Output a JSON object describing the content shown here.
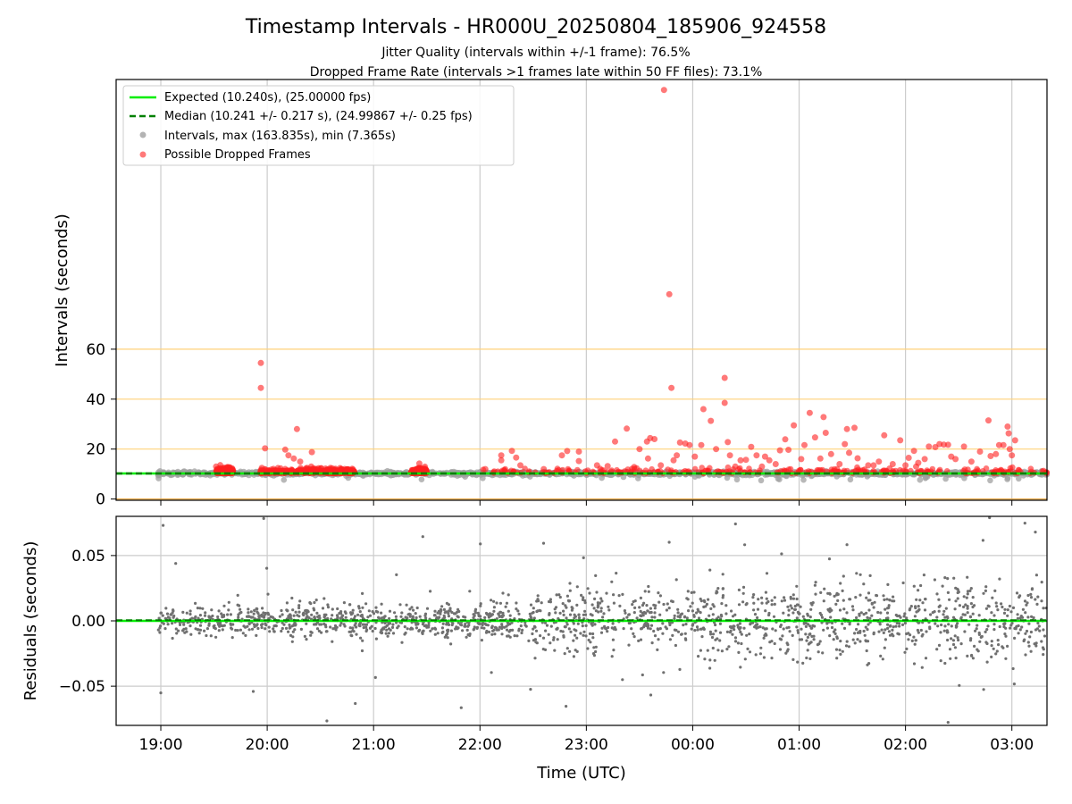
{
  "chart_data": {
    "title": "Timestamp Intervals - HR000U_20250804_185906_924558",
    "subtitles": [
      "Jitter Quality (intervals within +/-1 frame): 76.5%",
      "Dropped Frame Rate (intervals >1 frames late within 50 FF files): 73.1%"
    ],
    "xlabel": "Time (UTC)",
    "x_tick_labels": [
      "19:00",
      "20:00",
      "21:00",
      "22:00",
      "23:00",
      "00:00",
      "01:00",
      "02:00",
      "03:00"
    ],
    "x_range_hours": [
      18.58,
      27.33
    ],
    "colors": {
      "expected": "#00ee00",
      "median": "#008000",
      "intervals": "#a0a0a0",
      "dropped": "#ff2020",
      "residuals": "#707070",
      "threshold_lines": "#ffd27a",
      "grid": "#cccccc"
    },
    "panels": [
      {
        "type": "scatter",
        "ylabel": "Intervals (seconds)",
        "ylim": [
          -0.5,
          168
        ],
        "yticks": [
          0,
          20,
          40,
          60
        ],
        "y_tick_labels": [
          "0",
          "20",
          "40",
          "60"
        ],
        "horizontal_lines": [
          20,
          40,
          60
        ],
        "expected_interval": 10.24,
        "median_interval": 10.241,
        "legend": {
          "position": "top-left",
          "entries": [
            "Expected (10.240s), (25.00000 fps)",
            "Median (10.241 +/- 0.217 s), (24.99867 +/- 0.25 fps)",
            "Intervals, max (163.835s), min (7.365s)",
            "Possible Dropped Frames"
          ]
        },
        "series": [
          {
            "name": "Possible Dropped Frames",
            "points": [
              [
                19.94,
                54.5
              ],
              [
                19.94,
                44.5
              ],
              [
                19.98,
                20.3
              ],
              [
                20.17,
                19.8
              ],
              [
                20.2,
                17.5
              ],
              [
                20.25,
                16.2
              ],
              [
                20.28,
                28.0
              ],
              [
                20.31,
                15.0
              ],
              [
                20.42,
                18.8
              ],
              [
                19.52,
                13.0
              ],
              [
                19.6,
                11.5
              ],
              [
                19.95,
                12.5
              ],
              [
                21.43,
                14.2
              ],
              [
                22.05,
                12.0
              ],
              [
                22.2,
                17.5
              ],
              [
                22.2,
                15.5
              ],
              [
                22.3,
                19.3
              ],
              [
                22.34,
                16.6
              ],
              [
                22.38,
                13.5
              ],
              [
                22.77,
                17.5
              ],
              [
                22.82,
                19.2
              ],
              [
                22.93,
                19.0
              ],
              [
                22.93,
                15.2
              ],
              [
                23.1,
                13.5
              ],
              [
                23.27,
                23.0
              ],
              [
                23.38,
                28.2
              ],
              [
                23.5,
                20.0
              ],
              [
                23.57,
                23.0
              ],
              [
                23.58,
                16.2
              ],
              [
                23.6,
                24.4
              ],
              [
                23.64,
                24.0
              ],
              [
                23.7,
                13.5
              ],
              [
                23.73,
                163.8
              ],
              [
                23.78,
                82.0
              ],
              [
                23.8,
                44.5
              ],
              [
                23.82,
                15.5
              ],
              [
                23.85,
                17.5
              ],
              [
                23.88,
                22.6
              ],
              [
                23.93,
                22.2
              ],
              [
                23.97,
                21.6
              ],
              [
                24.02,
                17.0
              ],
              [
                24.08,
                21.6
              ],
              [
                24.1,
                36.0
              ],
              [
                24.17,
                31.3
              ],
              [
                24.22,
                20.0
              ],
              [
                24.3,
                48.5
              ],
              [
                24.3,
                38.5
              ],
              [
                24.33,
                22.8
              ],
              [
                24.35,
                17.5
              ],
              [
                24.45,
                15.5
              ],
              [
                24.5,
                15.7
              ],
              [
                24.55,
                20.9
              ],
              [
                24.6,
                17.5
              ],
              [
                24.65,
                13.0
              ],
              [
                24.68,
                17.0
              ],
              [
                24.72,
                15.5
              ],
              [
                24.78,
                14.0
              ],
              [
                24.82,
                19.5
              ],
              [
                24.87,
                23.9
              ],
              [
                24.9,
                19.7
              ],
              [
                24.95,
                29.5
              ],
              [
                25.02,
                16.0
              ],
              [
                25.05,
                21.6
              ],
              [
                25.1,
                34.5
              ],
              [
                25.15,
                24.7
              ],
              [
                25.2,
                16.2
              ],
              [
                25.23,
                32.8
              ],
              [
                25.25,
                26.5
              ],
              [
                25.3,
                18.0
              ],
              [
                25.38,
                14.0
              ],
              [
                25.43,
                22.0
              ],
              [
                25.45,
                28.0
              ],
              [
                25.47,
                18.5
              ],
              [
                25.52,
                28.5
              ],
              [
                25.55,
                16.3
              ],
              [
                25.6,
                11.5
              ],
              [
                25.7,
                13.5
              ],
              [
                25.75,
                15.0
              ],
              [
                25.8,
                25.5
              ],
              [
                25.85,
                12.2
              ],
              [
                25.88,
                14.0
              ],
              [
                25.95,
                23.5
              ],
              [
                26.0,
                13.5
              ],
              [
                26.03,
                16.5
              ],
              [
                26.08,
                19.3
              ],
              [
                26.12,
                14.5
              ],
              [
                26.18,
                16.0
              ],
              [
                26.22,
                21.0
              ],
              [
                26.28,
                20.8
              ],
              [
                26.32,
                22.0
              ],
              [
                26.36,
                21.8
              ],
              [
                26.4,
                21.7
              ],
              [
                26.43,
                17.0
              ],
              [
                26.47,
                16.0
              ],
              [
                26.55,
                21.0
              ],
              [
                26.62,
                15.0
              ],
              [
                26.7,
                19.0
              ],
              [
                26.78,
                31.5
              ],
              [
                26.8,
                17.2
              ],
              [
                26.85,
                18.0
              ],
              [
                26.88,
                21.6
              ],
              [
                26.92,
                21.6
              ],
              [
                26.96,
                29.0
              ],
              [
                26.97,
                26.3
              ],
              [
                26.98,
                20.0
              ],
              [
                27.0,
                17.5
              ],
              [
                27.03,
                23.5
              ],
              [
                26.1,
                13.0
              ],
              [
                25.65,
                13.5
              ],
              [
                24.4,
                13.0
              ],
              [
                23.45,
                12.8
              ],
              [
                23.2,
                13.2
              ],
              [
                22.6,
                12.0
              ]
            ]
          }
        ]
      },
      {
        "type": "scatter",
        "ylabel": "Residuals (seconds)",
        "ylim": [
          -0.08,
          0.08
        ],
        "yticks": [
          -0.05,
          0.0,
          0.05
        ],
        "y_tick_labels": [
          "−0.05",
          "0.00",
          "0.05"
        ],
        "grid": true
      }
    ]
  }
}
